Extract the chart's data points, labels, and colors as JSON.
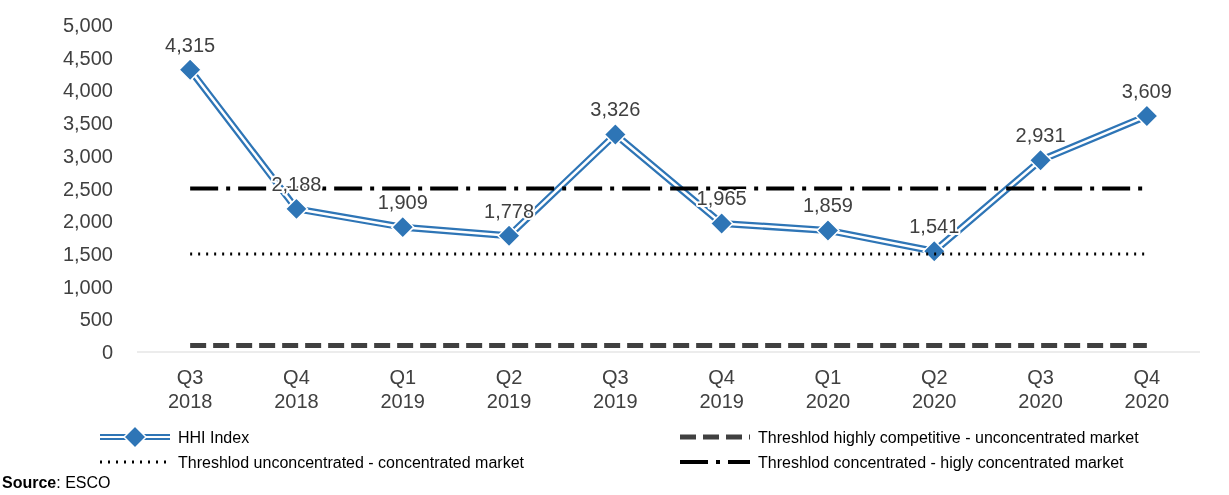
{
  "chart_data": {
    "type": "line",
    "categories": [
      "Q3 2018",
      "Q4 2018",
      "Q1 2019",
      "Q2 2019",
      "Q3 2019",
      "Q4 2019",
      "Q1 2020",
      "Q2 2020",
      "Q3 2020",
      "Q4 2020"
    ],
    "series": [
      {
        "name": "HHI Index",
        "color": "#2e75b6",
        "marker": "diamond",
        "values": [
          4315,
          2188,
          1909,
          1778,
          3326,
          1965,
          1859,
          1541,
          2931,
          3609
        ],
        "value_labels": [
          "4,315",
          "2,188",
          "1,909",
          "1,778",
          "3,326",
          "1,965",
          "1,859",
          "1,541",
          "2,931",
          "3,609"
        ]
      },
      {
        "name": "Threshlod highly competitive - unconcentrated market",
        "color": "#404040",
        "line_style": "dashed",
        "marker": "none",
        "values": [
          100,
          100,
          100,
          100,
          100,
          100,
          100,
          100,
          100,
          100
        ]
      },
      {
        "name": "Threshlod unconcentrated - concentrated market",
        "color": "#000000",
        "line_style": "dotted",
        "marker": "none",
        "values": [
          1500,
          1500,
          1500,
          1500,
          1500,
          1500,
          1500,
          1500,
          1500,
          1500
        ]
      },
      {
        "name": "Threshlod concentrated - higly concentrated market",
        "color": "#000000",
        "line_style": "dashdot",
        "marker": "none",
        "values": [
          2500,
          2500,
          2500,
          2500,
          2500,
          2500,
          2500,
          2500,
          2500,
          2500
        ]
      }
    ],
    "ylim": [
      0,
      5000
    ],
    "yticks": [
      {
        "value": 0,
        "label": "0"
      },
      {
        "value": 500,
        "label": "500"
      },
      {
        "value": 1000,
        "label": "1,000"
      },
      {
        "value": 1500,
        "label": "1,500"
      },
      {
        "value": 2000,
        "label": "2,000"
      },
      {
        "value": 2500,
        "label": "2,500"
      },
      {
        "value": 3000,
        "label": "3,000"
      },
      {
        "value": 3500,
        "label": "3,500"
      },
      {
        "value": 4000,
        "label": "4,000"
      },
      {
        "value": 4500,
        "label": "4,500"
      },
      {
        "value": 5000,
        "label": "5,000"
      }
    ],
    "grid": false,
    "legend": "bottom",
    "annotations": [
      "Source: ESCO"
    ]
  }
}
